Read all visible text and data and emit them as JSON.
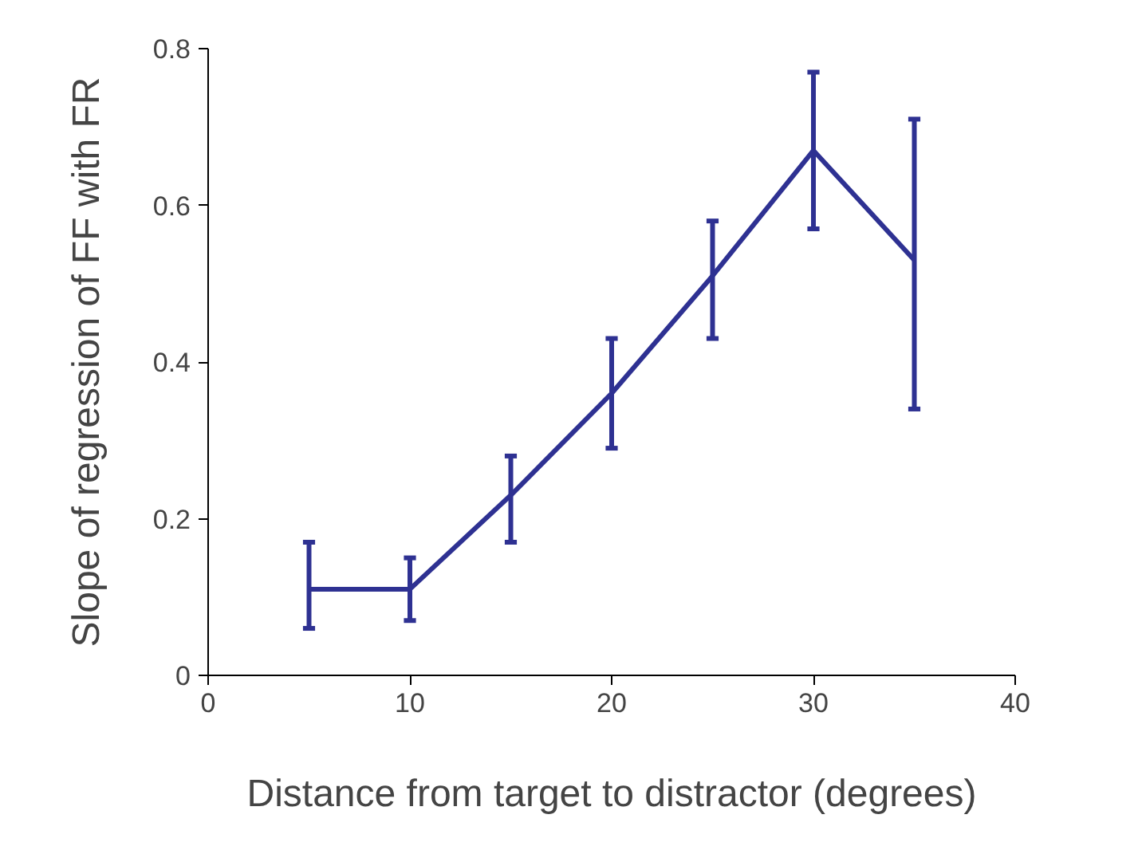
{
  "chart_data": {
    "type": "line",
    "xlabel": "Distance from target to distractor (degrees)",
    "ylabel": "Slope of regression of FF with FR",
    "x": [
      5,
      10,
      15,
      20,
      25,
      30,
      35
    ],
    "series": [
      {
        "color": "#2e3192",
        "values": [
          0.11,
          0.11,
          0.23,
          0.36,
          0.51,
          0.67,
          0.53
        ],
        "errors": [
          [
            0.06,
            0.17
          ],
          [
            0.07,
            0.15
          ],
          [
            0.17,
            0.28
          ],
          [
            0.29,
            0.43
          ],
          [
            0.43,
            0.58
          ],
          [
            0.57,
            0.77
          ],
          [
            0.34,
            0.71
          ]
        ]
      }
    ],
    "xlim": [
      0,
      40
    ],
    "xticks": [
      0,
      10,
      20,
      30,
      40
    ],
    "ylim": [
      0,
      0.8
    ],
    "yticks": [
      0,
      {
        "value": 0.2,
        "label": "0.2"
      },
      {
        "value": 0.4,
        "label": "0.4"
      },
      {
        "value": 0.6,
        "label": "0.6"
      },
      {
        "value": 0.8,
        "label": "0.8"
      }
    ],
    "grid": false,
    "marker": "none",
    "line_style": "solid"
  }
}
